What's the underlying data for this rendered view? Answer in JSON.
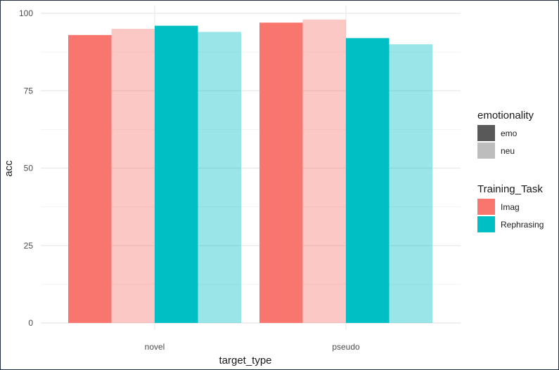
{
  "chart_data": {
    "type": "bar",
    "xlabel": "target_type",
    "ylabel": "acc",
    "categories": [
      "novel",
      "pseudo"
    ],
    "ylim": [
      0,
      100
    ],
    "yticks": [
      0,
      25,
      50,
      75,
      100
    ],
    "grid": true,
    "legend_placement": "right",
    "series": [
      {
        "name": "Imag / emo",
        "training_task": "Imag",
        "emotionality": "emo",
        "color": "#F8766D",
        "alpha": 1.0,
        "values": [
          93,
          97
        ]
      },
      {
        "name": "Imag / neu",
        "training_task": "Imag",
        "emotionality": "neu",
        "color": "#F8766D",
        "alpha": 0.4,
        "values": [
          95,
          98
        ]
      },
      {
        "name": "Rephrasing / emo",
        "training_task": "Rephrasing",
        "emotionality": "emo",
        "color": "#00BFC4",
        "alpha": 1.0,
        "values": [
          96,
          92
        ]
      },
      {
        "name": "Rephrasing / neu",
        "training_task": "Rephrasing",
        "emotionality": "neu",
        "color": "#00BFC4",
        "alpha": 0.4,
        "values": [
          94,
          90
        ]
      }
    ],
    "legends": [
      {
        "title": "emotionality",
        "entries": [
          {
            "label": "emo",
            "color": "#595959"
          },
          {
            "label": "neu",
            "color": "#bdbdbd"
          }
        ]
      },
      {
        "title": "Training_Task",
        "entries": [
          {
            "label": "Imag",
            "color": "#F8766D"
          },
          {
            "label": "Rephrasing",
            "color": "#00BFC4"
          }
        ]
      }
    ]
  }
}
